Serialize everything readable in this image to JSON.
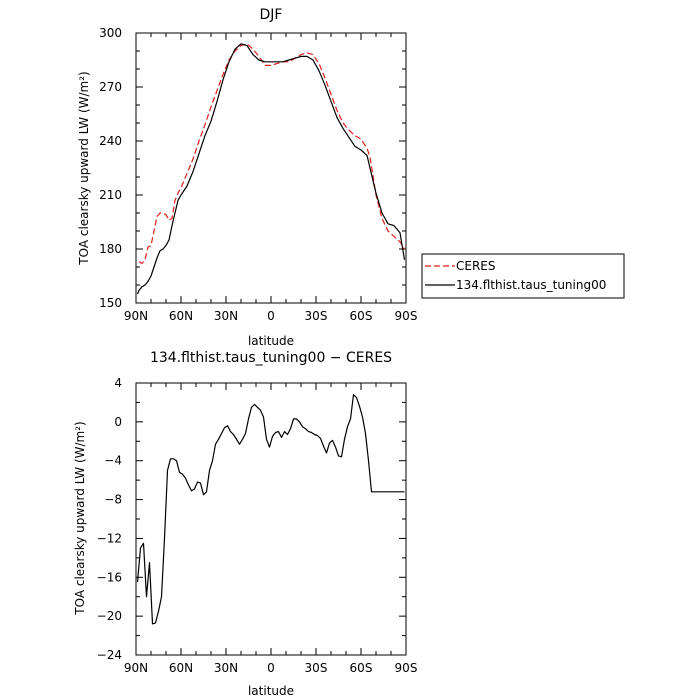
{
  "chart_data": [
    {
      "type": "line",
      "title": "DJF",
      "xlabel": "latitude",
      "ylabel": "TOA clearsky upward LW (W/m²)",
      "xlim": [
        90,
        -90
      ],
      "ylim": [
        150,
        300
      ],
      "xticks": [
        90,
        60,
        30,
        0,
        -30,
        -60,
        -90
      ],
      "xtick_labels": [
        "90N",
        "60N",
        "30N",
        "0",
        "30S",
        "60S",
        "90S"
      ],
      "yticks": [
        150,
        180,
        210,
        240,
        270,
        300
      ],
      "ytick_labels": [
        "150",
        "180",
        "210",
        "240",
        "270",
        "300"
      ],
      "legend": {
        "placement": "right-outside"
      },
      "series": [
        {
          "name": "CERES",
          "color": "#e0201b",
          "dash": "dashed",
          "x": [
            88,
            86,
            84,
            82,
            80,
            78,
            76,
            74,
            72,
            70,
            68,
            66,
            64,
            62,
            60,
            56,
            52,
            48,
            44,
            40,
            36,
            32,
            28,
            24,
            20,
            16,
            12,
            8,
            4,
            0,
            -4,
            -8,
            -12,
            -16,
            -20,
            -24,
            -28,
            -32,
            -36,
            -40,
            -44,
            -48,
            -52,
            -56,
            -60,
            -64,
            -66,
            -70,
            -74,
            -78,
            -82,
            -86,
            -89
          ],
          "y": [
            173,
            172,
            174,
            181,
            182,
            190,
            198,
            200,
            200,
            199,
            196,
            197,
            207,
            211,
            214,
            222,
            230,
            240,
            249,
            259,
            268,
            277,
            285,
            290,
            293,
            294,
            291,
            287,
            282,
            282,
            283,
            284,
            284,
            286,
            288,
            289,
            288,
            283,
            275,
            266,
            257,
            250,
            246,
            243,
            241,
            236,
            231,
            210,
            197,
            190,
            187,
            184,
            180
          ]
        },
        {
          "name": "134.flthist.taus_tuning00",
          "color": "#000000",
          "dash": "solid",
          "x": [
            89,
            88,
            86,
            84,
            82,
            80,
            78,
            76,
            74,
            72,
            70,
            68,
            66,
            64,
            62,
            60,
            56,
            52,
            48,
            44,
            40,
            36,
            32,
            28,
            24,
            20,
            16,
            12,
            8,
            4,
            0,
            -4,
            -8,
            -12,
            -16,
            -20,
            -24,
            -28,
            -32,
            -36,
            -40,
            -44,
            -48,
            -52,
            -56,
            -60,
            -64,
            -66,
            -70,
            -74,
            -78,
            -82,
            -86,
            -89
          ],
          "y": [
            155,
            157,
            159,
            160,
            162,
            165,
            170,
            175,
            179,
            180,
            182,
            185,
            193,
            200,
            207,
            210,
            215,
            223,
            233,
            243,
            251,
            262,
            274,
            284,
            291,
            294,
            293,
            288,
            285,
            284,
            284,
            284,
            284,
            285,
            286,
            287,
            287,
            285,
            279,
            271,
            262,
            253,
            247,
            242,
            237,
            235,
            232,
            225,
            211,
            200,
            194,
            193,
            189,
            174
          ]
        }
      ]
    },
    {
      "type": "line",
      "title": "134.flthist.taus_tuning00 − CERES",
      "xlabel": "latitude",
      "ylabel": "TOA clearsky upward LW (W/m²)",
      "xlim": [
        90,
        -90
      ],
      "ylim": [
        -24,
        4
      ],
      "xticks": [
        90,
        60,
        30,
        0,
        -30,
        -60,
        -90
      ],
      "xtick_labels": [
        "90N",
        "60N",
        "30N",
        "0",
        "30S",
        "60S",
        "90S"
      ],
      "yticks": [
        -24,
        -20,
        -16,
        -12,
        -8,
        -4,
        0,
        4
      ],
      "ytick_labels": [
        "−24",
        "−20",
        "−16",
        "−12",
        "−8",
        "−4",
        "0",
        "4"
      ],
      "series": [
        {
          "color": "#000000",
          "dash": "solid",
          "x": [
            89,
            87,
            85,
            83,
            81,
            79,
            77,
            75,
            73,
            71,
            69,
            67,
            65,
            63,
            61,
            59,
            57,
            55,
            53,
            51,
            49,
            47,
            45,
            43,
            41,
            39,
            37,
            35,
            33,
            31,
            29,
            27,
            25,
            23,
            21,
            19,
            17,
            15,
            13,
            11,
            9,
            7,
            5,
            3,
            1,
            -1,
            -3,
            -5,
            -7,
            -9,
            -11,
            -13,
            -15,
            -17,
            -19,
            -21,
            -23,
            -25,
            -27,
            -29,
            -31,
            -33,
            -35,
            -37,
            -39,
            -41,
            -43,
            -45,
            -47,
            -49,
            -51,
            -53,
            -55,
            -57,
            -59,
            -61,
            -63,
            -65,
            -67,
            -69,
            -71,
            -73,
            -75,
            -77,
            -79,
            -81,
            -83,
            -85,
            -87,
            -89
          ],
          "y": [
            -16.5,
            -13,
            -12.5,
            -18,
            -14.5,
            -20.8,
            -20.7,
            -19.5,
            -18,
            -12,
            -5,
            -3.8,
            -3.8,
            -4,
            -5.2,
            -5.4,
            -5.8,
            -6.5,
            -7.1,
            -6.9,
            -6.2,
            -6.3,
            -7.5,
            -7.2,
            -5,
            -4,
            -2.3,
            -1.8,
            -1.2,
            -0.6,
            -0.4,
            -1,
            -1.3,
            -1.8,
            -2.3,
            -1.8,
            -1.2,
            0.3,
            1.5,
            1.8,
            1.5,
            1.2,
            0.5,
            -1.8,
            -2.6,
            -1.5,
            -1.1,
            -1,
            -1.6,
            -1,
            -1.3,
            -0.7,
            0.3,
            0.3,
            0,
            -0.5,
            -0.7,
            -1,
            -1.1,
            -1.3,
            -1.4,
            -1.7,
            -2.5,
            -3.2,
            -2.2,
            -1.9,
            -2.6,
            -3.5,
            -3.6,
            -1.8,
            -0.5,
            0.3,
            2.8,
            2.5,
            1.6,
            0.5,
            -1.2,
            -4,
            -7.2,
            -7.2,
            -7.2,
            -7.2,
            -7.2,
            -7.2,
            -7.2,
            -7.2,
            -7.2,
            -7.2,
            -7.2,
            -7.2
          ]
        }
      ]
    }
  ]
}
